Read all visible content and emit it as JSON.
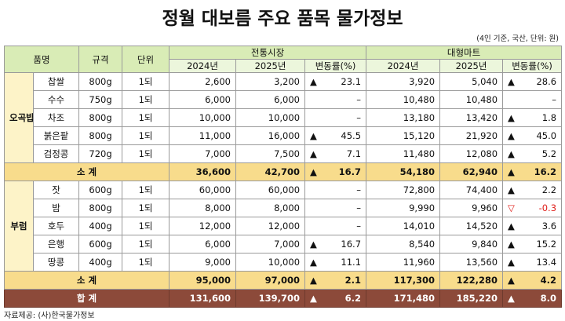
{
  "title": "정월 대보름 주요 품목 물가정보",
  "note": "(4인 기준, 국산, 단위: 원)",
  "header": {
    "item": "품명",
    "spec": "규격",
    "unit": "단위",
    "markets": [
      {
        "name": "전통시장",
        "cols": [
          "2024년",
          "2025년",
          "변동률(%)"
        ]
      },
      {
        "name": "대형마트",
        "cols": [
          "2024년",
          "2025년",
          "변동률(%)"
        ]
      }
    ]
  },
  "groups": [
    {
      "name": "오곡밥",
      "rows": [
        {
          "item": "찹쌀",
          "spec": "800g",
          "unit": "1되",
          "cells": [
            "2,600",
            "3,200",
            {
              "arrow": "▲",
              "value": "23.1"
            },
            "3,920",
            "5,040",
            {
              "arrow": "▲",
              "value": "28.6"
            }
          ]
        },
        {
          "item": "수수",
          "spec": "750g",
          "unit": "1되",
          "cells": [
            "6,000",
            "6,000",
            "–",
            "10,480",
            "10,480",
            "–"
          ]
        },
        {
          "item": "차조",
          "spec": "800g",
          "unit": "1되",
          "cells": [
            "10,000",
            "10,000",
            "–",
            "13,180",
            "13,420",
            {
              "arrow": "▲",
              "value": "1.8"
            }
          ]
        },
        {
          "item": "붉은팥",
          "spec": "800g",
          "unit": "1되",
          "cells": [
            "11,000",
            "16,000",
            {
              "arrow": "▲",
              "value": "45.5"
            },
            "15,120",
            "21,920",
            {
              "arrow": "▲",
              "value": "45.0"
            }
          ]
        },
        {
          "item": "검정콩",
          "spec": "720g",
          "unit": "1되",
          "cells": [
            "7,000",
            "7,500",
            {
              "arrow": "▲",
              "value": "7.1"
            },
            "11,480",
            "12,080",
            {
              "arrow": "▲",
              "value": "5.2"
            }
          ]
        }
      ],
      "subtotal": {
        "label": "소  계",
        "cells": [
          "36,600",
          "42,700",
          {
            "arrow": "▲",
            "value": "16.7"
          },
          "54,180",
          "62,940",
          {
            "arrow": "▲",
            "value": "16.2"
          }
        ]
      }
    },
    {
      "name": "부럼",
      "rows": [
        {
          "item": "잣",
          "spec": "600g",
          "unit": "1되",
          "cells": [
            "60,000",
            "60,000",
            "–",
            "72,800",
            "74,400",
            {
              "arrow": "▲",
              "value": "2.2"
            }
          ]
        },
        {
          "item": "밤",
          "spec": "800g",
          "unit": "1되",
          "cells": [
            "8,000",
            "8,000",
            "–",
            "9,990",
            "9,960",
            {
              "arrow": "▽",
              "value": "-0.3",
              "color": "#e0201b"
            }
          ]
        },
        {
          "item": "호두",
          "spec": "400g",
          "unit": "1되",
          "cells": [
            "12,000",
            "12,000",
            "–",
            "14,010",
            "14,520",
            {
              "arrow": "▲",
              "value": "3.6"
            }
          ]
        },
        {
          "item": "은행",
          "spec": "600g",
          "unit": "1되",
          "cells": [
            "6,000",
            "7,000",
            {
              "arrow": "▲",
              "value": "16.7"
            },
            "8,540",
            "9,840",
            {
              "arrow": "▲",
              "value": "15.2"
            }
          ]
        },
        {
          "item": "땅콩",
          "spec": "400g",
          "unit": "1되",
          "cells": [
            "9,000",
            "10,000",
            {
              "arrow": "▲",
              "value": "11.1"
            },
            "11,960",
            "13,560",
            {
              "arrow": "▲",
              "value": "13.4"
            }
          ]
        }
      ],
      "subtotal": {
        "label": "소  계",
        "cells": [
          "95,000",
          "97,000",
          {
            "arrow": "▲",
            "value": "2.1"
          },
          "117,300",
          "122,280",
          {
            "arrow": "▲",
            "value": "4.2"
          }
        ]
      }
    }
  ],
  "total": {
    "label": "합  계",
    "cells": [
      "131,600",
      "139,700",
      {
        "arrow": "▲",
        "value": "6.2"
      },
      "171,480",
      "185,220",
      {
        "arrow": "▲",
        "value": "8.0"
      }
    ]
  },
  "source": "자료제공: (사)한국물가정보"
}
